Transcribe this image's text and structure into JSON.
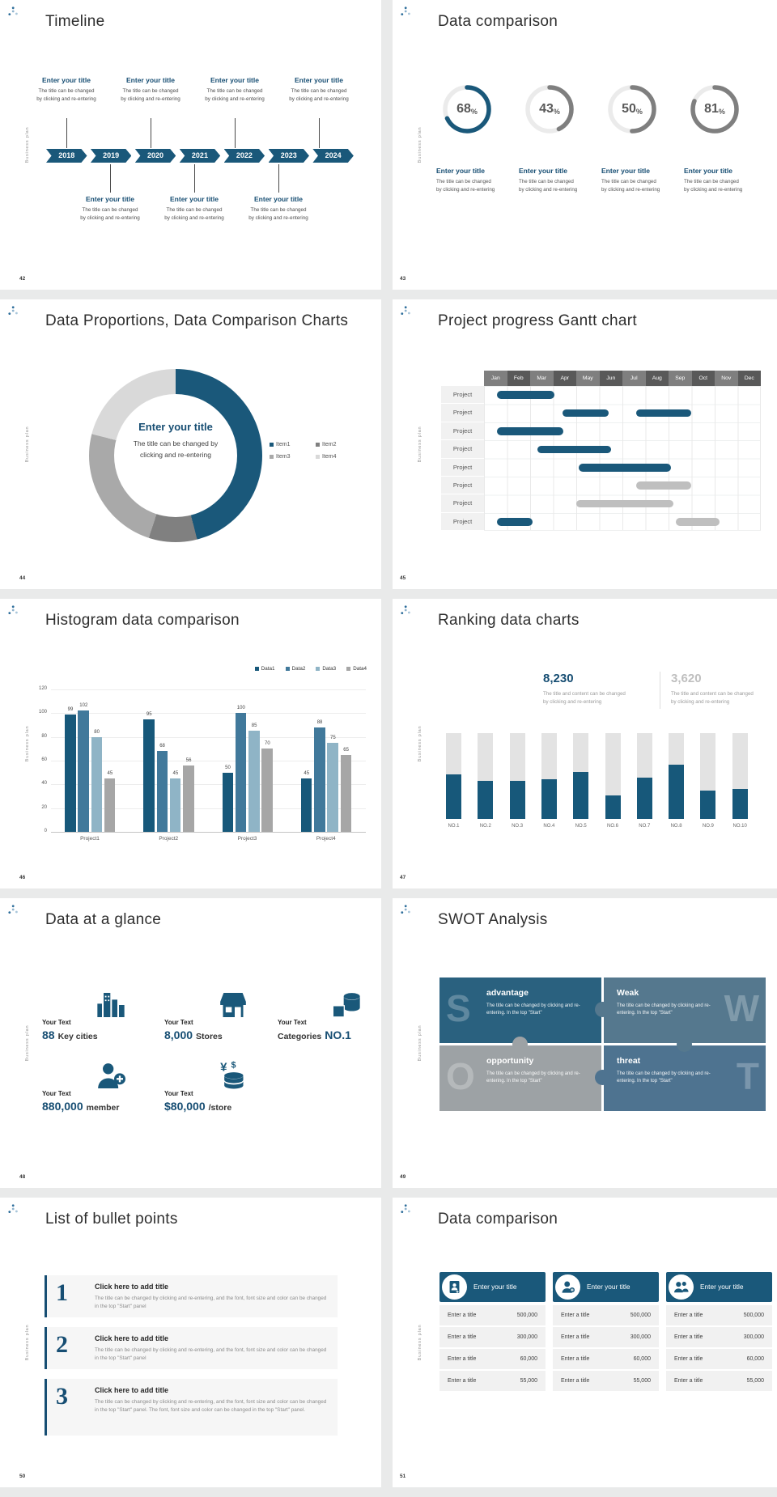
{
  "brand": {
    "vertical_text": "Business plan",
    "accent": "#1A587A",
    "navy_text": "#174E73"
  },
  "slides": [
    {
      "number": "42",
      "title": "Timeline",
      "item_title": "Enter your title",
      "item_desc": [
        "The title can be changed",
        "by clicking and re-entering"
      ],
      "years": [
        "2018",
        "2019",
        "2020",
        "2021",
        "2022",
        "2023",
        "2024"
      ]
    },
    {
      "number": "43",
      "title": "Data comparison",
      "item_title": "Enter your title",
      "item_desc": [
        "The title can be changed",
        "by clicking and re-entering"
      ],
      "rings": [
        {
          "percent": 68,
          "color": "#1A587A"
        },
        {
          "percent": 43,
          "color": "#7F7F7F"
        },
        {
          "percent": 50,
          "color": "#7F7F7F"
        },
        {
          "percent": 81,
          "color": "#7F7F7F"
        }
      ]
    },
    {
      "number": "44",
      "title": "Data Proportions, Data Comparison Charts",
      "center_title": "Enter your title",
      "center_desc": [
        "The title can be changed by",
        "clicking and re-entering"
      ],
      "chart_data": {
        "type": "pie",
        "legend_position": "right",
        "segments": [
          {
            "label": "Item1",
            "value": 46,
            "color": "#1A587A"
          },
          {
            "label": "Item2",
            "value": 9,
            "color": "#808080"
          },
          {
            "label": "Item3",
            "value": 24,
            "color": "#A9A9A9"
          },
          {
            "label": "Item4",
            "value": 21,
            "color": "#D9D9D9"
          }
        ]
      }
    },
    {
      "number": "45",
      "title": "Project progress Gantt chart",
      "row_label": "Project",
      "months": [
        "Jan",
        "Feb",
        "Mar",
        "Apr",
        "May",
        "Jun",
        "Jul",
        "Aug",
        "Sep",
        "Oct",
        "Nov",
        "Dec"
      ],
      "header_colors": [
        "#7F7F7F",
        "#595959"
      ],
      "bar_colors": {
        "blue": "#1A587A",
        "gray": "#BFBFBF"
      },
      "chart_data": {
        "type": "gantt",
        "rows": [
          [
            {
              "start": 0.55,
              "end": 3.05,
              "color": "blue"
            }
          ],
          [
            {
              "start": 3.4,
              "end": 5.4,
              "color": "blue"
            },
            {
              "start": 6.6,
              "end": 9.0,
              "color": "blue"
            }
          ],
          [
            {
              "start": 0.55,
              "end": 3.45,
              "color": "blue"
            }
          ],
          [
            {
              "start": 2.3,
              "end": 5.5,
              "color": "blue"
            }
          ],
          [
            {
              "start": 4.1,
              "end": 8.1,
              "color": "blue"
            }
          ],
          [
            {
              "start": 6.6,
              "end": 9.0,
              "color": "gray"
            }
          ],
          [
            {
              "start": 4.0,
              "end": 8.2,
              "color": "gray"
            }
          ],
          [
            {
              "start": 0.55,
              "end": 2.1,
              "color": "blue"
            },
            {
              "start": 8.3,
              "end": 10.2,
              "color": "gray"
            }
          ]
        ]
      }
    },
    {
      "number": "46",
      "title": "Histogram data comparison",
      "chart_data": {
        "type": "bar",
        "categories": [
          "Project1",
          "Project2",
          "Project3",
          "Project4"
        ],
        "series": [
          {
            "name": "Data1",
            "color": "#17587A",
            "values": [
              99,
              95,
              50,
              45
            ]
          },
          {
            "name": "Data2",
            "color": "#41799B",
            "values": [
              102,
              68,
              100,
              88
            ]
          },
          {
            "name": "Data3",
            "color": "#8FB4C6",
            "values": [
              80,
              45,
              85,
              75
            ]
          },
          {
            "name": "Data4",
            "color": "#A6A6A6",
            "values": [
              45,
              56,
              70,
              65
            ]
          }
        ],
        "y_ticks": [
          0,
          20,
          40,
          60,
          80,
          100,
          120
        ],
        "ylim": [
          0,
          120
        ],
        "grid": true,
        "legend_position": "top-right"
      }
    },
    {
      "number": "47",
      "title": "Ranking data charts",
      "stats": [
        {
          "value": "8,230",
          "color": "#174E73",
          "desc": [
            "The title and content can be changed",
            "by clicking and re-entering"
          ]
        },
        {
          "value": "3,620",
          "color": "#BFBFBF",
          "desc": [
            "The title and content can be changed",
            "by clicking and re-entering"
          ]
        }
      ],
      "chart_data": {
        "type": "bar",
        "categories": [
          "NO.1",
          "NO.2",
          "NO.3",
          "NO.4",
          "NO.5",
          "NO.6",
          "NO.7",
          "NO.8",
          "NO.9",
          "NO.10"
        ],
        "values_percent": [
          52,
          44,
          44,
          46,
          55,
          27,
          48,
          63,
          33,
          35
        ],
        "track_color": "#E3E3E3",
        "fill_color": "#17587A"
      }
    },
    {
      "number": "48",
      "title": "Data at a glance",
      "label": "Your Text",
      "stats": [
        {
          "icon": "city-icon",
          "value": "88",
          "unit": "Key cities",
          "value_first": true
        },
        {
          "icon": "store-icon",
          "value": "8,000",
          "unit": "Stores",
          "value_first": true
        },
        {
          "icon": "boxes-icon",
          "value": "NO.1",
          "unit": "Categories",
          "value_first": false
        },
        {
          "icon": "member-icon",
          "value": "880,000",
          "unit": "member",
          "value_first": true
        },
        {
          "icon": "coins-icon",
          "value": "$80,000",
          "unit": "/store",
          "value_first": true
        }
      ]
    },
    {
      "number": "49",
      "title": "SWOT Analysis",
      "pieces": [
        {
          "letter": "S",
          "heading": "advantage",
          "text": "The title can be changed by clicking and re-entering. In the top \"Start\"",
          "color": "#2A617F",
          "align": "left"
        },
        {
          "letter": "W",
          "heading": "Weak",
          "text": "The title can be changed by clicking and re-entering. In the top \"Start\"",
          "color": "#55788E",
          "align": "right"
        },
        {
          "letter": "O",
          "heading": "opportunity",
          "text": "The title can be changed by clicking and re-entering. In the top \"Start\"",
          "color": "#9DA2A5",
          "align": "left"
        },
        {
          "letter": "T",
          "heading": "threat",
          "text": "The title can be changed by clicking and re-entering. In the top \"Start\"",
          "color": "#4E7390",
          "align": "right"
        }
      ]
    },
    {
      "number": "50",
      "title": "List of bullet points",
      "items": [
        {
          "num": "1",
          "heading": "Click here to add title",
          "text": "The title can be changed by clicking and re-entering, and the font, font size and color can be changed in the top \"Start\" panel"
        },
        {
          "num": "2",
          "heading": "Click here to add title",
          "text": "The title can be changed by clicking and re-entering, and the font, font size and color can be changed in the top \"Start\" panel"
        },
        {
          "num": "3",
          "heading": "Click here to add title",
          "text": "The title can be changed by clicking and re-entering, and the font, font size and color can be changed in the top \"Start\" panel. The font, font size and color can be changed in the top \"Start\" panel."
        }
      ]
    },
    {
      "number": "51",
      "title": "Data comparison",
      "card_title": "Enter your title",
      "row_label": "Enter a title",
      "card_icons": [
        "id-card-icon",
        "person-plus-icon",
        "people-icon"
      ],
      "values": [
        "500,000",
        "300,000",
        "60,000",
        "55,000"
      ]
    }
  ]
}
